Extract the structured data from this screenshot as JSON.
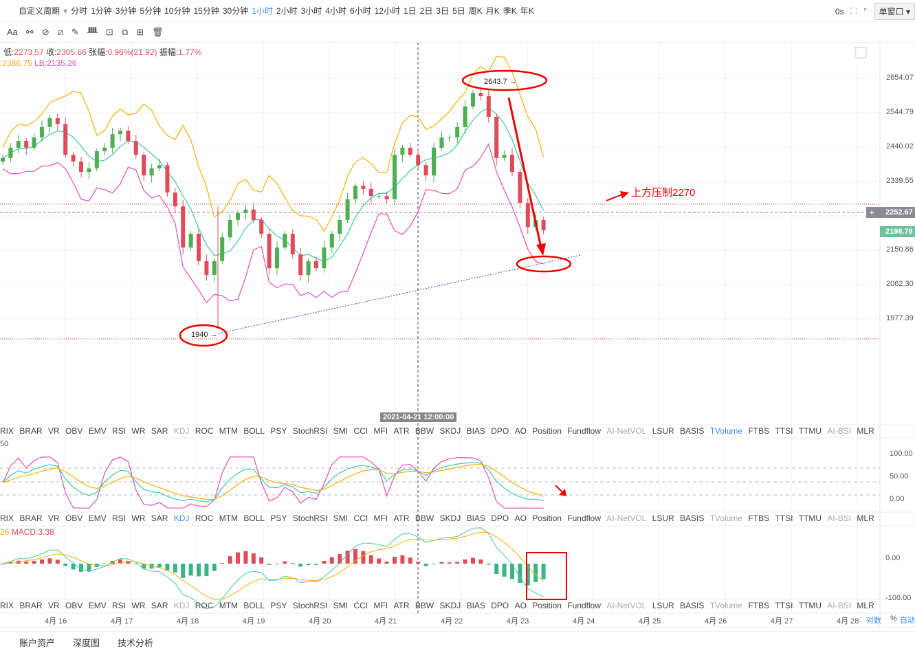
{
  "toolbar": {
    "custom_period": "自定义周期",
    "periods": [
      "分时",
      "1分钟",
      "3分钟",
      "5分钟",
      "10分钟",
      "15分钟",
      "30分钟",
      "1小时",
      "2小时",
      "3小时",
      "4小时",
      "6小时",
      "12小时",
      "1日",
      "2日",
      "3日",
      "5日",
      "周K",
      "月K",
      "季K",
      "年K"
    ],
    "active_period": "1小时",
    "countdown": "0s",
    "window_mode": "单窗口"
  },
  "drawing_tools": [
    "Aa"
  ],
  "ohlc": {
    "low_label": "低:",
    "low": "2273.57",
    "close_label": "收:",
    "close": "2305.66",
    "change_label": "张幅:",
    "change": "0.96%(21.92)",
    "amp_label": "振幅:",
    "amp": "1.77%"
  },
  "boll": {
    "ub": ":2386.75",
    "lb": "LB:2135.26"
  },
  "price_axis": [
    "2654.07",
    "2544.79",
    "2440.02",
    "2339.55",
    "2150.86",
    "2062.30",
    "1977.39"
  ],
  "price_tags": {
    "crosshair": "2252.67",
    "last": "2198.78"
  },
  "annotations": {
    "high": "2643.7 →",
    "low": "1940 →",
    "resistance": "上方压制2270"
  },
  "indicator_tabs": [
    "RIX",
    "BRAR",
    "VR",
    "OBV",
    "EMV",
    "RSI",
    "WR",
    "SAR",
    "KDJ",
    "ROC",
    "MTM",
    "BOLL",
    "PSY",
    "StochRSI",
    "SMI",
    "CCI",
    "MFI",
    "ATR",
    "BBW",
    "SKDJ",
    "BIAS",
    "DPO",
    "AO",
    "Position",
    "Fundflow",
    "AI-NetVOL",
    "LSUR",
    "BASIS",
    "TVolume",
    "FTBS",
    "TTSI",
    "TTMU",
    "AI-BSI",
    "MLR"
  ],
  "kdj": {
    "label": "50",
    "axis": [
      "100.00",
      "50.00",
      "0.00"
    ]
  },
  "macd": {
    "label1": "26",
    "label2": "MACD:3.38",
    "axis": [
      "0.00",
      "-100.00"
    ]
  },
  "time_axis": {
    "labels": [
      "4月 16",
      "4月 17",
      "4月 18",
      "4月 19",
      "4月 20",
      "4月 21",
      "4月 22",
      "4月 23",
      "4月 24",
      "4月 25",
      "4月 26",
      "4月 27",
      "4月 28"
    ],
    "crosshair": "2021-04-21 12:00:00",
    "log": "对数",
    "pct": "%",
    "auto": "自动"
  },
  "bottom_tabs": [
    "账户资产",
    "深度图",
    "技术分析"
  ],
  "chart_data": {
    "type": "candlestick",
    "closes": [
      2430,
      2459,
      2478,
      2459,
      2488,
      2517,
      2542,
      2526,
      2439,
      2420,
      2391,
      2401,
      2449,
      2459,
      2497,
      2507,
      2478,
      2439,
      2381,
      2401,
      2410,
      2333,
      2294,
      2178,
      2217,
      2140,
      2101,
      2140,
      2207,
      2256,
      2275,
      2285,
      2256,
      2217,
      2120,
      2178,
      2217,
      2159,
      2101,
      2140,
      2120,
      2178,
      2217,
      2256,
      2314,
      2352,
      2343,
      2323,
      2323,
      2314,
      2439,
      2459,
      2439,
      2410,
      2381,
      2459,
      2488,
      2488,
      2517,
      2575,
      2613,
      2604,
      2546,
      2430,
      2439,
      2391,
      2304,
      2236,
      2256,
      2227
    ],
    "colors": {
      "up": "#4caf50",
      "down": "#e04b5a",
      "boll_mid": "#3cc9a8",
      "boll_up": "#f5b000",
      "boll_low": "#e84bb4"
    }
  }
}
